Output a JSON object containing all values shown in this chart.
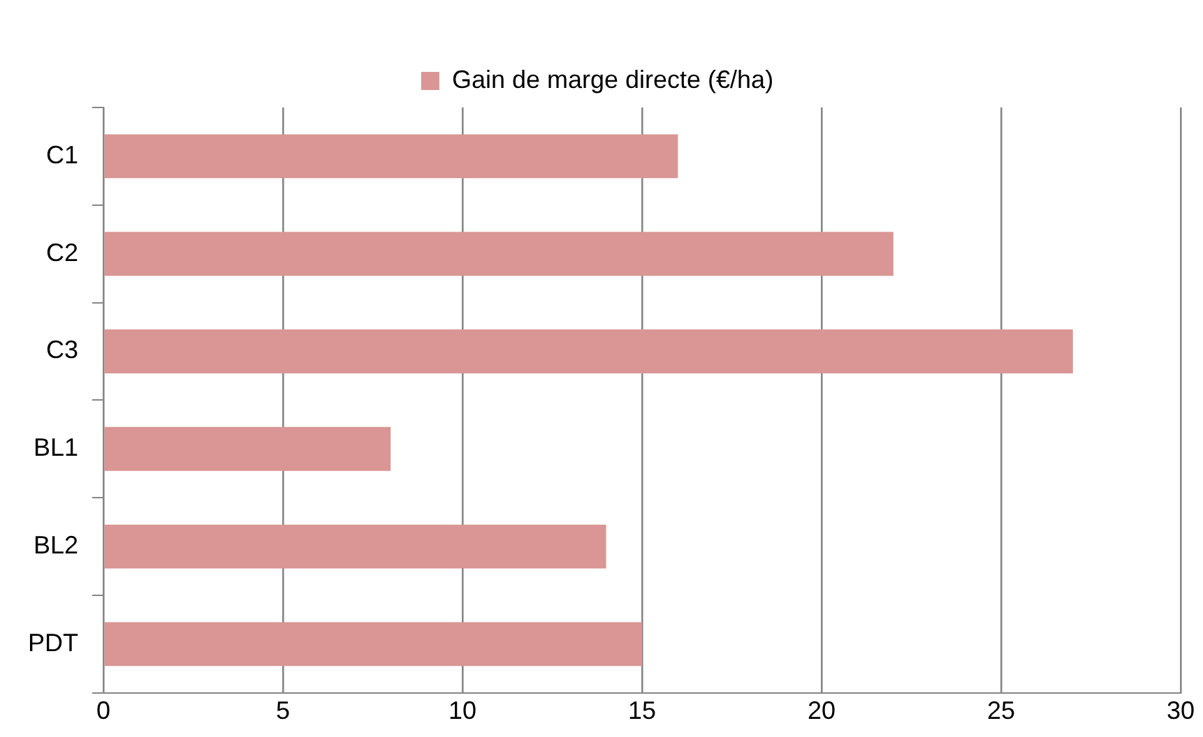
{
  "chart_data": {
    "type": "bar",
    "orientation": "horizontal",
    "categories": [
      "C1",
      "C2",
      "C3",
      "BL1",
      "BL2",
      "PDT"
    ],
    "series": [
      {
        "name": "Gain de marge directe (€/ha)",
        "color": "#d99694",
        "values": [
          16,
          22,
          27,
          8,
          14,
          15
        ]
      }
    ],
    "xlim": [
      0,
      30
    ],
    "xticks": [
      0,
      5,
      10,
      15,
      20,
      25,
      30
    ],
    "grid": "x",
    "legend": "top"
  }
}
